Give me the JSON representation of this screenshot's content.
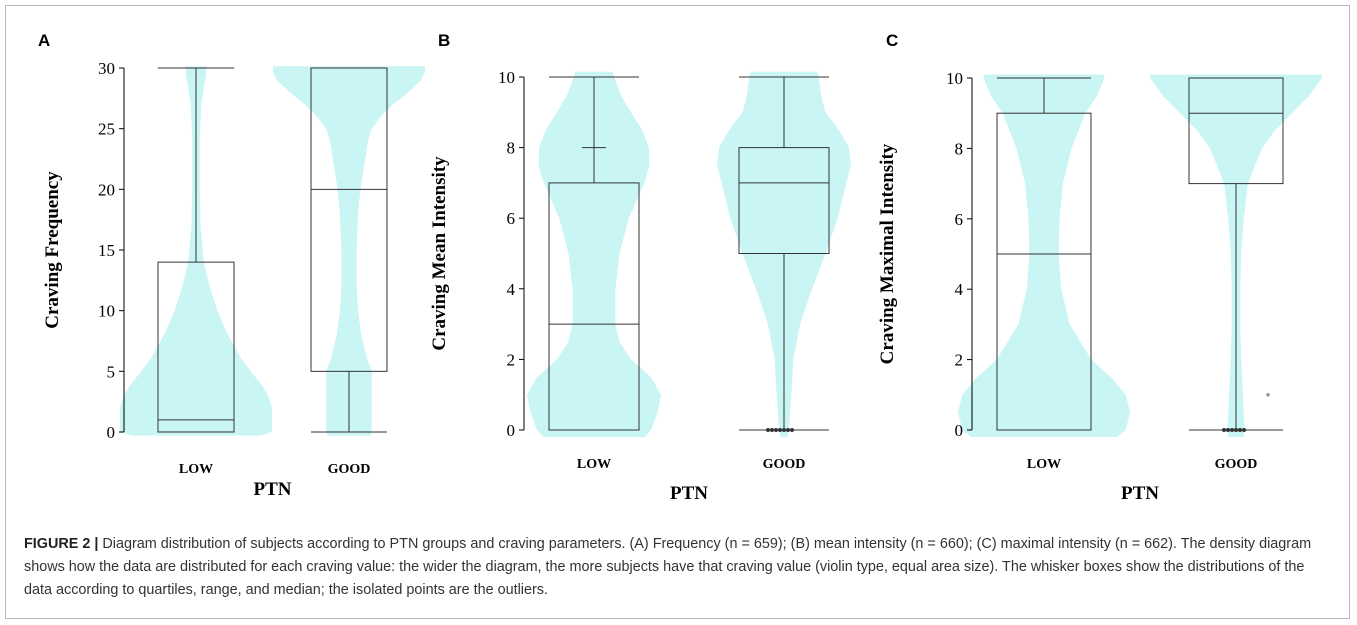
{
  "caption": {
    "label": "FIGURE 2 |",
    "text": " Diagram distribution of subjects according to PTN groups and craving parameters. (A) Frequency (n = 659); (B) mean intensity (n = 660); (C) maximal intensity (n = 662). The density diagram shows how the data are distributed for each craving value: the wider the diagram, the more subjects have that craving value (violin type, equal area size). The whisker boxes show the distributions of the data according to quartiles, range, and median; the isolated points are the outliers."
  },
  "colors": {
    "violin": "#c9f5f5",
    "box": "#333333",
    "outlier": "#333333"
  },
  "chart_data": [
    {
      "type": "violin-box",
      "panel": "A",
      "xlabel": "PTN",
      "ylabel": "Craving Frequency",
      "ylim": [
        0,
        30
      ],
      "yticks": [
        0,
        5,
        10,
        15,
        20,
        25,
        30
      ],
      "categories": [
        "LOW",
        "GOOD"
      ],
      "groups": [
        {
          "category": "LOW",
          "box": {
            "min": 0,
            "q1": 0,
            "median": 1,
            "q3": 14,
            "max": 30
          },
          "extra_marks": [],
          "outliers": [],
          "density": [
            [
              -0.3,
              0.85
            ],
            [
              0,
              1
            ],
            [
              1,
              1
            ],
            [
              2,
              1
            ],
            [
              3,
              0.95
            ],
            [
              4,
              0.85
            ],
            [
              5,
              0.72
            ],
            [
              6,
              0.6
            ],
            [
              8,
              0.42
            ],
            [
              10,
              0.28
            ],
            [
              12,
              0.18
            ],
            [
              14,
              0.1
            ],
            [
              17,
              0.06
            ],
            [
              20,
              0.05
            ],
            [
              24,
              0.05
            ],
            [
              27,
              0.07
            ],
            [
              29,
              0.12
            ],
            [
              30,
              0.14
            ],
            [
              30.15,
              0.14
            ]
          ]
        },
        {
          "category": "GOOD",
          "box": {
            "min": 0,
            "q1": 5,
            "median": 20,
            "q3": 30,
            "max": 30
          },
          "extra_marks": [],
          "outliers": [],
          "density": [
            [
              -0.3,
              0.28
            ],
            [
              0,
              0.3
            ],
            [
              2,
              0.3
            ],
            [
              4,
              0.3
            ],
            [
              5,
              0.3
            ],
            [
              6,
              0.24
            ],
            [
              8,
              0.16
            ],
            [
              10,
              0.12
            ],
            [
              12,
              0.1
            ],
            [
              15,
              0.1
            ],
            [
              18,
              0.12
            ],
            [
              20,
              0.15
            ],
            [
              22,
              0.2
            ],
            [
              24,
              0.25
            ],
            [
              25,
              0.3
            ],
            [
              26,
              0.42
            ],
            [
              27,
              0.58
            ],
            [
              28,
              0.78
            ],
            [
              29,
              0.95
            ],
            [
              29.7,
              1
            ],
            [
              30.15,
              1
            ]
          ]
        }
      ]
    },
    {
      "type": "violin-box",
      "panel": "B",
      "xlabel": "PTN",
      "ylabel": "Craving Mean Intensity",
      "ylim": [
        0,
        10
      ],
      "yticks": [
        0,
        2,
        4,
        6,
        8,
        10
      ],
      "categories": [
        "LOW",
        "GOOD"
      ],
      "groups": [
        {
          "category": "LOW",
          "box": {
            "min": 0,
            "q1": 0,
            "median": 3,
            "q3": 7,
            "max": 10
          },
          "extra_marks": [
            8
          ],
          "outliers": [],
          "density": [
            [
              -0.2,
              0.75
            ],
            [
              0,
              0.85
            ],
            [
              0.5,
              0.95
            ],
            [
              1,
              1
            ],
            [
              1.5,
              0.85
            ],
            [
              2,
              0.55
            ],
            [
              2.5,
              0.38
            ],
            [
              3,
              0.32
            ],
            [
              4,
              0.32
            ],
            [
              5,
              0.38
            ],
            [
              6,
              0.52
            ],
            [
              7,
              0.75
            ],
            [
              7.5,
              0.83
            ],
            [
              8,
              0.82
            ],
            [
              8.5,
              0.72
            ],
            [
              9,
              0.55
            ],
            [
              9.5,
              0.4
            ],
            [
              10,
              0.3
            ],
            [
              10.15,
              0.28
            ]
          ]
        },
        {
          "category": "GOOD",
          "box": {
            "min": 0,
            "q1": 5,
            "median": 7,
            "q3": 8,
            "max": 10
          },
          "extra_marks": [],
          "outliers": [
            0.05,
            0.1,
            0.15,
            0.2,
            0.25,
            0.3,
            0.35
          ],
          "density": [
            [
              -0.2,
              0.05
            ],
            [
              0,
              0.07
            ],
            [
              0.5,
              0.09
            ],
            [
              1,
              0.11
            ],
            [
              2,
              0.14
            ],
            [
              3,
              0.24
            ],
            [
              4,
              0.42
            ],
            [
              5,
              0.62
            ],
            [
              6,
              0.8
            ],
            [
              7,
              0.93
            ],
            [
              7.5,
              1
            ],
            [
              8,
              0.97
            ],
            [
              8.5,
              0.82
            ],
            [
              9,
              0.62
            ],
            [
              9.5,
              0.55
            ],
            [
              10,
              0.52
            ],
            [
              10.15,
              0.5
            ]
          ]
        }
      ]
    },
    {
      "type": "violin-box",
      "panel": "C",
      "xlabel": "PTN",
      "ylabel": "Craving Maximal Intensity",
      "ylim": [
        0,
        10
      ],
      "yticks": [
        0,
        2,
        4,
        6,
        8,
        10
      ],
      "categories": [
        "LOW",
        "GOOD"
      ],
      "groups": [
        {
          "category": "LOW",
          "box": {
            "min": 0,
            "q1": 0,
            "median": 5,
            "q3": 9,
            "max": 10
          },
          "extra_marks": [],
          "outliers": [],
          "density": [
            [
              -0.2,
              0.85
            ],
            [
              0,
              0.95
            ],
            [
              0.5,
              1
            ],
            [
              1,
              0.95
            ],
            [
              1.5,
              0.78
            ],
            [
              2,
              0.55
            ],
            [
              3,
              0.3
            ],
            [
              4,
              0.2
            ],
            [
              5,
              0.17
            ],
            [
              6,
              0.18
            ],
            [
              7,
              0.22
            ],
            [
              8,
              0.32
            ],
            [
              9,
              0.48
            ],
            [
              9.5,
              0.62
            ],
            [
              10,
              0.7
            ],
            [
              10.1,
              0.7
            ]
          ]
        },
        {
          "category": "GOOD",
          "box": {
            "min": 0,
            "q1": 7,
            "median": 9,
            "q3": 10,
            "max": 10
          },
          "extra_marks": [],
          "outliers": [
            1,
            0.05,
            0.1,
            0.15,
            0.2,
            0.25,
            0.3
          ],
          "density": [
            [
              -0.2,
              0.09
            ],
            [
              0,
              0.1
            ],
            [
              0.5,
              0.09
            ],
            [
              1,
              0.08
            ],
            [
              2,
              0.06
            ],
            [
              3,
              0.05
            ],
            [
              4,
              0.05
            ],
            [
              5,
              0.06
            ],
            [
              6,
              0.09
            ],
            [
              7,
              0.14
            ],
            [
              8,
              0.3
            ],
            [
              8.5,
              0.45
            ],
            [
              9,
              0.65
            ],
            [
              9.5,
              0.85
            ],
            [
              10,
              1
            ],
            [
              10.1,
              1
            ]
          ]
        }
      ]
    }
  ]
}
